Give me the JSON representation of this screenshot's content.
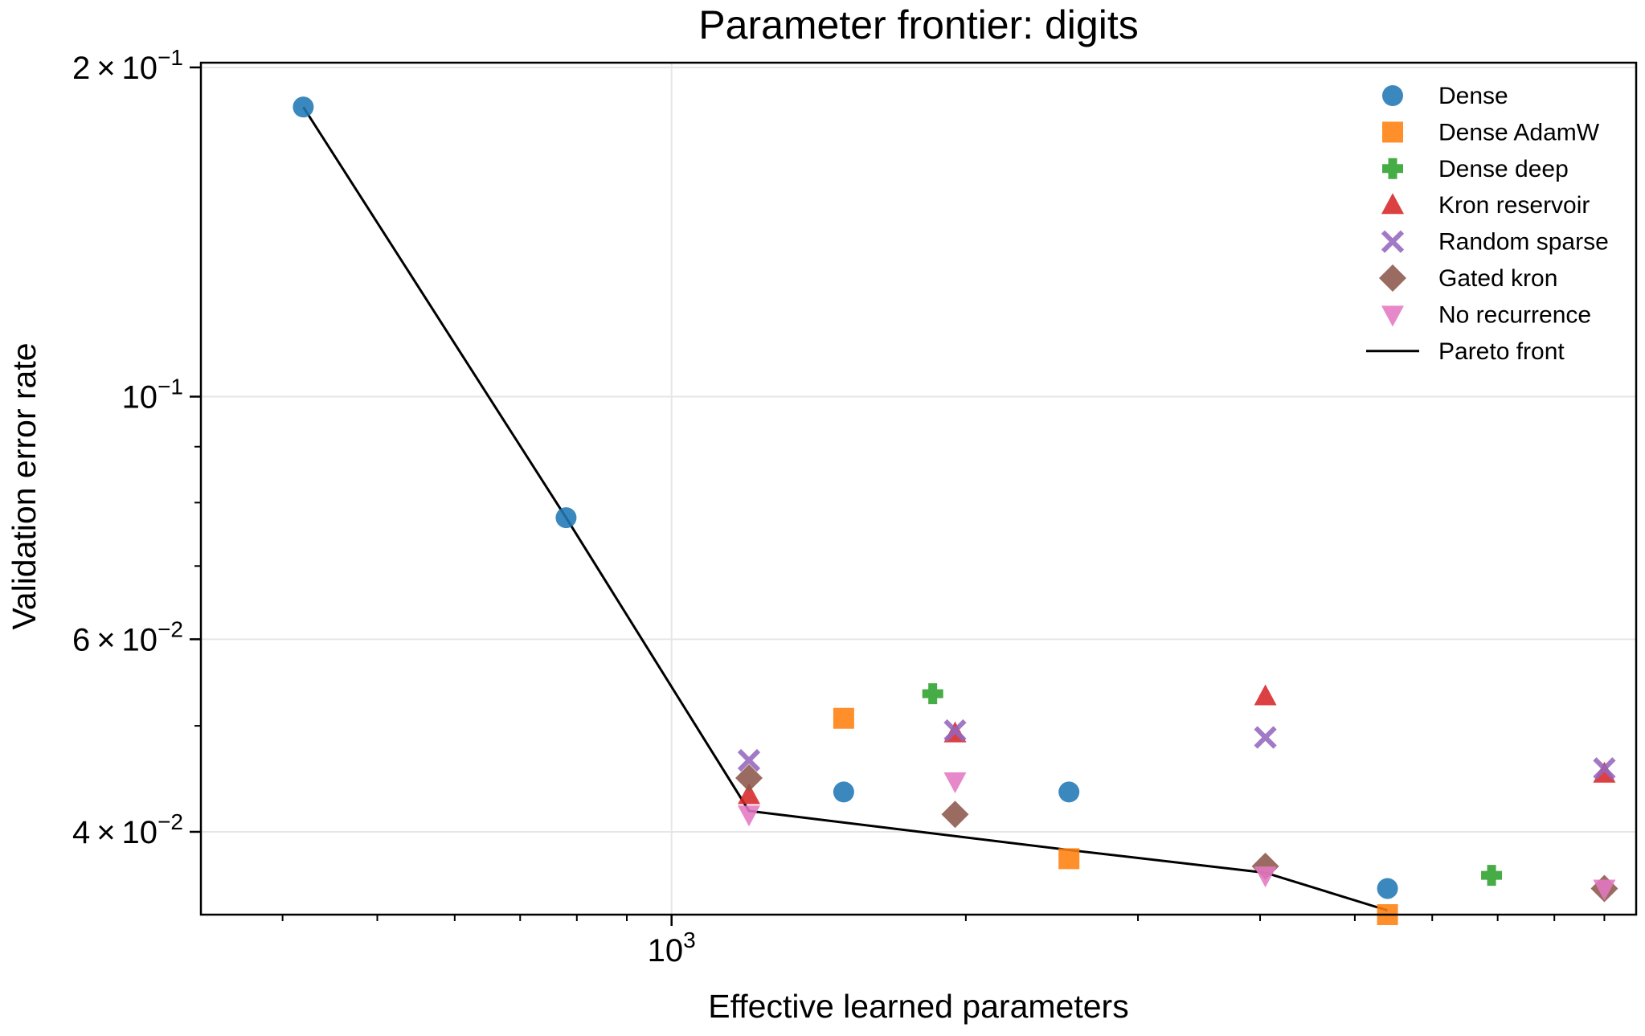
{
  "chart_data": {
    "type": "scatter",
    "title": "Parameter frontier: digits",
    "xlabel": "Effective learned parameters",
    "ylabel": "Validation error rate",
    "xscale": "log",
    "yscale": "log",
    "xlim": [
      330,
      9700
    ],
    "ylim": [
      0.0336,
      0.202
    ],
    "grid": true,
    "legend_position": "upper right",
    "x_major_ticks": [
      {
        "value": 1000,
        "base": "10",
        "exp": "3",
        "coef": ""
      }
    ],
    "y_major_ticks": [
      {
        "value": 0.2,
        "coef": "2",
        "base": "10",
        "exp": "−1"
      },
      {
        "value": 0.1,
        "coef": "",
        "base": "10",
        "exp": "−1"
      },
      {
        "value": 0.06,
        "coef": "6",
        "base": "10",
        "exp": "−2"
      },
      {
        "value": 0.04,
        "coef": "4",
        "base": "10",
        "exp": "−2"
      }
    ],
    "x_minor_ticks": [
      400,
      500,
      600,
      700,
      800,
      900,
      2000,
      3000,
      4000,
      5000,
      6000,
      7000,
      8000,
      9000
    ],
    "y_minor_ticks": [
      0.05,
      0.07,
      0.08,
      0.09
    ],
    "series": [
      {
        "name": "Dense",
        "marker": "circle",
        "color": "#1f77b4",
        "points": [
          [
            420,
            0.184
          ],
          [
            780,
            0.0775
          ],
          [
            1500,
            0.0435
          ],
          [
            2550,
            0.0435
          ],
          [
            5400,
            0.0355
          ]
        ]
      },
      {
        "name": "Dense AdamW",
        "marker": "square",
        "color": "#ff7f0e",
        "points": [
          [
            1500,
            0.0508
          ],
          [
            2550,
            0.0378
          ],
          [
            5400,
            0.0336
          ]
        ]
      },
      {
        "name": "Dense deep",
        "marker": "plus",
        "color": "#2ca02c",
        "points": [
          [
            1850,
            0.0535
          ],
          [
            6900,
            0.0365
          ]
        ]
      },
      {
        "name": "Kron reservoir",
        "marker": "triangle-up",
        "color": "#d62728",
        "points": [
          [
            1200,
            0.0432
          ],
          [
            1950,
            0.0492
          ],
          [
            4050,
            0.0532
          ],
          [
            9000,
            0.0452
          ]
        ]
      },
      {
        "name": "Random sparse",
        "marker": "x",
        "color": "#9467bd",
        "points": [
          [
            1200,
            0.0465
          ],
          [
            1950,
            0.0495
          ],
          [
            4050,
            0.0488
          ],
          [
            9000,
            0.0457
          ]
        ]
      },
      {
        "name": "Gated kron",
        "marker": "diamond",
        "color": "#8c564b",
        "points": [
          [
            1200,
            0.0448
          ],
          [
            1950,
            0.0415
          ],
          [
            4050,
            0.0372
          ],
          [
            9000,
            0.0355
          ]
        ]
      },
      {
        "name": "No recurrence",
        "marker": "triangle-down",
        "color": "#e377c2",
        "points": [
          [
            1200,
            0.0415
          ],
          [
            1950,
            0.0445
          ],
          [
            4050,
            0.0365
          ],
          [
            9000,
            0.0355
          ]
        ]
      }
    ],
    "pareto_front": {
      "name": "Pareto front",
      "color": "#000000",
      "points": [
        [
          420,
          0.184
        ],
        [
          780,
          0.0775
        ],
        [
          1200,
          0.0418
        ],
        [
          2550,
          0.0385
        ],
        [
          4050,
          0.0367
        ],
        [
          5400,
          0.0339
        ]
      ]
    }
  }
}
